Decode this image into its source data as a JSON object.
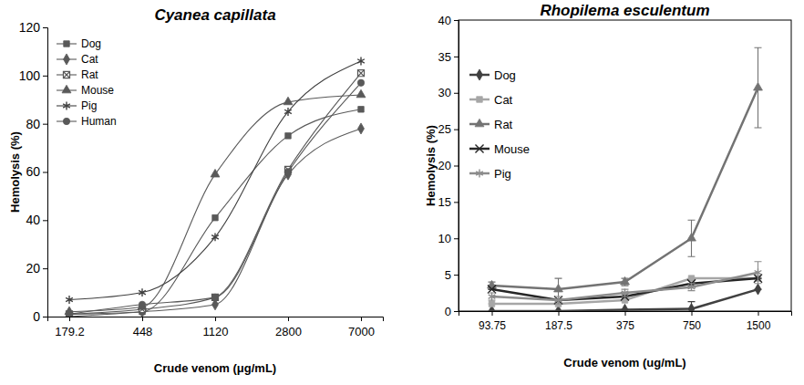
{
  "chart_data": [
    {
      "type": "line",
      "title": "Cyanea capillata",
      "x_label": "Crude venom (μg/mL)",
      "y_label": "Hemolysis (%)",
      "categories": [
        "179.2",
        "448",
        "1120",
        "2800",
        "7000"
      ],
      "ylim": [
        0,
        120
      ],
      "yticks": [
        0,
        20,
        40,
        60,
        80,
        100,
        120
      ],
      "grid": false,
      "legend": "upper left",
      "line_style": "smooth",
      "series": [
        {
          "name": "Dog",
          "color": "#595959",
          "marker": "square",
          "values": [
            1,
            2,
            41,
            75,
            86
          ]
        },
        {
          "name": "Cat",
          "color": "#595959",
          "marker": "diamond",
          "values": [
            0,
            2,
            5,
            59,
            78
          ]
        },
        {
          "name": "Rat",
          "color": "#595959",
          "marker": "square-x",
          "values": [
            1,
            3,
            8,
            61,
            101
          ]
        },
        {
          "name": "Mouse",
          "color": "#595959",
          "marker": "triangle",
          "values": [
            2,
            4,
            59,
            89,
            92
          ]
        },
        {
          "name": "Pig",
          "color": "#404040",
          "marker": "asterisk",
          "values": [
            7,
            10,
            33,
            85,
            106
          ]
        },
        {
          "name": "Human",
          "color": "#595959",
          "marker": "circle",
          "values": [
            1,
            5,
            8,
            60,
            97
          ]
        }
      ]
    },
    {
      "type": "line",
      "title": "Rhopilema esculentum",
      "x_label": "Crude venom (ug/mL)",
      "y_label": "Hemolysis (%)",
      "categories": [
        "93.75",
        "187.5",
        "375",
        "750",
        "1500"
      ],
      "ylim": [
        0,
        40
      ],
      "yticks": [
        0,
        5,
        10,
        15,
        20,
        25,
        30,
        35,
        40
      ],
      "grid": false,
      "legend": "upper left",
      "line_style": "solid",
      "series": [
        {
          "name": "Dog",
          "color": "#404040",
          "marker": "diamond",
          "values": [
            0,
            0,
            0.2,
            0.3,
            3
          ],
          "errors": [
            0,
            0,
            0,
            1,
            0
          ]
        },
        {
          "name": "Cat",
          "color": "#a6a6a6",
          "marker": "square",
          "values": [
            1,
            1,
            1.5,
            4.5,
            4.5
          ],
          "errors": [
            0,
            0,
            0,
            0,
            0
          ]
        },
        {
          "name": "Rat",
          "color": "#737373",
          "marker": "triangle",
          "values": [
            3.5,
            3,
            4,
            10,
            30.7
          ],
          "errors": [
            0.5,
            1.5,
            0.5,
            2.5,
            5.5
          ]
        },
        {
          "name": "Mouse",
          "color": "#262626",
          "marker": "x",
          "values": [
            3,
            1.5,
            2,
            3.8,
            4.5
          ],
          "errors": [
            0,
            0,
            0,
            0,
            0
          ]
        },
        {
          "name": "Pig",
          "color": "#8c8c8c",
          "marker": "asterisk",
          "values": [
            2,
            1.5,
            2.5,
            3.3,
            5.3
          ],
          "errors": [
            0.5,
            0.5,
            0.5,
            0.5,
            1.5
          ]
        }
      ]
    }
  ]
}
